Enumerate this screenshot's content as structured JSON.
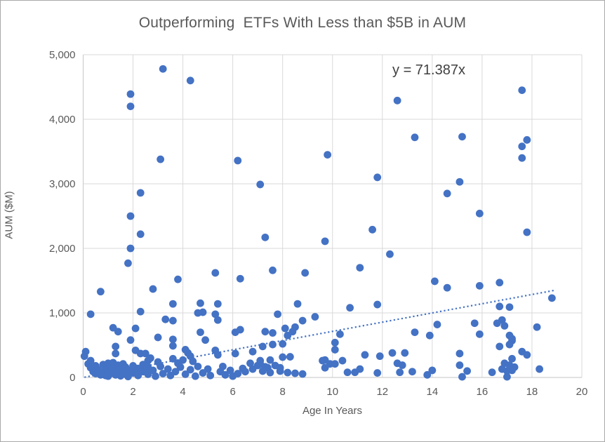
{
  "chart": {
    "title": "Outperforming  ETFs With Less than $5B in AUM",
    "equation_label": "y = 71.387x"
  },
  "colors": {
    "marker": "#4472C4",
    "trendline": "#4472C4",
    "gridline": "#D9D9D9",
    "axis_line": "#C6C6C6",
    "text": "#595959",
    "equation_text": "#404040"
  },
  "chart_data": {
    "type": "scatter",
    "title": "Outperforming  ETFs With Less than $5B in AUM",
    "xlabel": "Age In Years",
    "ylabel": "AUM ($M)",
    "xlim": [
      0,
      20
    ],
    "ylim": [
      0,
      5000
    ],
    "xticks": [
      0,
      2,
      4,
      6,
      8,
      10,
      12,
      14,
      16,
      18,
      20
    ],
    "xtick_labels": [
      "0",
      "2",
      "4",
      "6",
      "8",
      "10",
      "12",
      "14",
      "16",
      "18",
      "20"
    ],
    "yticks": [
      0,
      1000,
      2000,
      3000,
      4000,
      5000
    ],
    "ytick_labels": [
      "0",
      "1,000",
      "2,000",
      "3,000",
      "4,000",
      "5,000"
    ],
    "grid": true,
    "legend": "none",
    "annotation": {
      "text": "y = 71.387x",
      "x": 13.6,
      "y": 4780
    },
    "trendline": {
      "equation": "y = 71.387x",
      "slope": 71.387,
      "intercept": 0,
      "x_start": 0.05,
      "x_end": 18.9,
      "style": "dotted"
    },
    "points": [
      [
        3.2,
        4780
      ],
      [
        4.3,
        4600
      ],
      [
        17.6,
        4450
      ],
      [
        1.9,
        4390
      ],
      [
        12.6,
        4290
      ],
      [
        1.9,
        4200
      ],
      [
        15.2,
        3730
      ],
      [
        13.3,
        3720
      ],
      [
        17.8,
        3680
      ],
      [
        17.6,
        3580
      ],
      [
        9.8,
        3450
      ],
      [
        17.6,
        3400
      ],
      [
        3.1,
        3380
      ],
      [
        6.2,
        3360
      ],
      [
        11.8,
        3100
      ],
      [
        15.1,
        3030
      ],
      [
        7.1,
        2990
      ],
      [
        2.3,
        2860
      ],
      [
        14.6,
        2850
      ],
      [
        15.9,
        2540
      ],
      [
        1.9,
        2500
      ],
      [
        11.6,
        2290
      ],
      [
        17.8,
        2250
      ],
      [
        2.3,
        2220
      ],
      [
        7.3,
        2170
      ],
      [
        9.7,
        2110
      ],
      [
        1.9,
        2000
      ],
      [
        12.3,
        1910
      ],
      [
        1.8,
        1770
      ],
      [
        11.1,
        1700
      ],
      [
        7.6,
        1660
      ],
      [
        8.9,
        1620
      ],
      [
        5.3,
        1620
      ],
      [
        6.3,
        1530
      ],
      [
        3.8,
        1520
      ],
      [
        14.1,
        1490
      ],
      [
        16.7,
        1470
      ],
      [
        15.9,
        1420
      ],
      [
        14.6,
        1390
      ],
      [
        2.8,
        1370
      ],
      [
        0.7,
        1330
      ],
      [
        18.8,
        1230
      ],
      [
        4.7,
        1150
      ],
      [
        8.6,
        1140
      ],
      [
        3.6,
        1140
      ],
      [
        5.4,
        1140
      ],
      [
        11.8,
        1130
      ],
      [
        16.7,
        1100
      ],
      [
        17.1,
        1090
      ],
      [
        10.7,
        1080
      ],
      [
        2.3,
        1020
      ],
      [
        4.8,
        1010
      ],
      [
        4.6,
        1000
      ],
      [
        0.3,
        980
      ],
      [
        5.3,
        980
      ],
      [
        7.8,
        980
      ],
      [
        9.3,
        940
      ],
      [
        3.3,
        900
      ],
      [
        16.8,
        890
      ],
      [
        5.4,
        890
      ],
      [
        3.6,
        880
      ],
      [
        8.8,
        880
      ],
      [
        15.7,
        840
      ],
      [
        16.6,
        840
      ],
      [
        14.2,
        820
      ],
      [
        16.9,
        800
      ],
      [
        18.2,
        780
      ],
      [
        8.5,
        780
      ],
      [
        1.2,
        770
      ],
      [
        2.1,
        760
      ],
      [
        8.1,
        760
      ],
      [
        6.3,
        740
      ],
      [
        7.3,
        710
      ],
      [
        8.4,
        710
      ],
      [
        1.4,
        710
      ],
      [
        4.7,
        700
      ],
      [
        6.1,
        700
      ],
      [
        13.3,
        700
      ],
      [
        7.6,
        690
      ],
      [
        15.9,
        670
      ],
      [
        10.3,
        670
      ],
      [
        13.9,
        650
      ],
      [
        17.1,
        650
      ],
      [
        8.2,
        650
      ],
      [
        3.0,
        620
      ],
      [
        17.2,
        600
      ],
      [
        3.6,
        590
      ],
      [
        1.9,
        580
      ],
      [
        4.9,
        580
      ],
      [
        17.2,
        570
      ],
      [
        10.1,
        540
      ],
      [
        8.0,
        520
      ],
      [
        7.6,
        510
      ],
      [
        17.1,
        510
      ],
      [
        3.6,
        490
      ],
      [
        1.3,
        480
      ],
      [
        7.2,
        480
      ],
      [
        16.7,
        480
      ],
      [
        10.1,
        430
      ],
      [
        4.1,
        430
      ],
      [
        5.3,
        420
      ],
      [
        2.1,
        420
      ],
      [
        0.1,
        400
      ],
      [
        6.8,
        400
      ],
      [
        17.6,
        400
      ],
      [
        12.4,
        380
      ],
      [
        12.9,
        380
      ],
      [
        4.2,
        380
      ],
      [
        1.3,
        370
      ],
      [
        2.3,
        370
      ],
      [
        2.5,
        370
      ],
      [
        6.1,
        370
      ],
      [
        15.1,
        370
      ],
      [
        17.8,
        350
      ],
      [
        5.4,
        350
      ],
      [
        11.3,
        350
      ],
      [
        0.05,
        330
      ],
      [
        4.3,
        330
      ],
      [
        11.9,
        330
      ],
      [
        8.3,
        320
      ],
      [
        8.0,
        315
      ],
      [
        2.7,
        300
      ],
      [
        17.2,
        290
      ],
      [
        3.6,
        290
      ],
      [
        9.7,
        270
      ],
      [
        7.5,
        270
      ],
      [
        4.0,
        270
      ],
      [
        0.3,
        260
      ],
      [
        2.6,
        260
      ],
      [
        9.6,
        260
      ],
      [
        10.4,
        260
      ],
      [
        7.1,
        260
      ],
      [
        4.4,
        250
      ],
      [
        3.0,
        240
      ],
      [
        6.7,
        220
      ],
      [
        3.8,
        220
      ],
      [
        12.6,
        220
      ],
      [
        16.9,
        220
      ],
      [
        9.9,
        210
      ],
      [
        10.1,
        210
      ],
      [
        7.1,
        210
      ],
      [
        12.8,
        190
      ],
      [
        15.1,
        190
      ],
      [
        17.1,
        190
      ],
      [
        7.0,
        185
      ],
      [
        7.7,
        185
      ],
      [
        17.3,
        160
      ],
      [
        7.3,
        165
      ],
      [
        9.7,
        150
      ],
      [
        7.4,
        150
      ],
      [
        7.9,
        150
      ],
      [
        18.3,
        130
      ],
      [
        16.8,
        130
      ],
      [
        11.1,
        130
      ],
      [
        6.8,
        130
      ],
      [
        17.2,
        110
      ],
      [
        14.0,
        110
      ],
      [
        17.0,
        100
      ],
      [
        15.4,
        100
      ],
      [
        7.2,
        98
      ],
      [
        7.9,
        98
      ],
      [
        13.2,
        90
      ],
      [
        12.7,
        80
      ],
      [
        16.4,
        80
      ],
      [
        10.9,
        80
      ],
      [
        10.6,
        80
      ],
      [
        7.5,
        76
      ],
      [
        8.2,
        76
      ],
      [
        11.8,
        70
      ],
      [
        8.5,
        65
      ],
      [
        8.8,
        54
      ],
      [
        13.8,
        40
      ],
      [
        17.0,
        10
      ],
      [
        15.2,
        10
      ],
      [
        0.2,
        210
      ],
      [
        0.3,
        150
      ],
      [
        0.4,
        90
      ],
      [
        0.5,
        180
      ],
      [
        0.5,
        60
      ],
      [
        0.6,
        120
      ],
      [
        0.7,
        40
      ],
      [
        0.8,
        200
      ],
      [
        0.8,
        90
      ],
      [
        0.9,
        150
      ],
      [
        0.9,
        30
      ],
      [
        1.0,
        220
      ],
      [
        1.0,
        100
      ],
      [
        1.0,
        20
      ],
      [
        1.1,
        170
      ],
      [
        1.1,
        60
      ],
      [
        1.2,
        230
      ],
      [
        1.2,
        120
      ],
      [
        1.3,
        40
      ],
      [
        1.4,
        190
      ],
      [
        1.4,
        80
      ],
      [
        1.5,
        140
      ],
      [
        1.5,
        25
      ],
      [
        1.6,
        210
      ],
      [
        1.6,
        90
      ],
      [
        1.7,
        160
      ],
      [
        1.7,
        50
      ],
      [
        1.8,
        110
      ],
      [
        1.8,
        15
      ],
      [
        2.0,
        180
      ],
      [
        2.0,
        70
      ],
      [
        2.2,
        140
      ],
      [
        2.2,
        30
      ],
      [
        2.4,
        200
      ],
      [
        2.4,
        90
      ],
      [
        2.6,
        160
      ],
      [
        2.6,
        50
      ],
      [
        2.8,
        110
      ],
      [
        2.9,
        20
      ],
      [
        3.1,
        170
      ],
      [
        3.2,
        60
      ],
      [
        3.4,
        130
      ],
      [
        3.5,
        30
      ],
      [
        3.7,
        90
      ],
      [
        3.9,
        160
      ],
      [
        4.1,
        50
      ],
      [
        4.3,
        120
      ],
      [
        4.5,
        20
      ],
      [
        4.6,
        170
      ],
      [
        4.8,
        70
      ],
      [
        5.0,
        130
      ],
      [
        5.1,
        30
      ],
      [
        5.5,
        90
      ],
      [
        5.6,
        170
      ],
      [
        5.7,
        40
      ],
      [
        5.9,
        110
      ],
      [
        6.0,
        20
      ],
      [
        6.2,
        60
      ],
      [
        6.4,
        140
      ],
      [
        6.5,
        90
      ]
    ]
  }
}
